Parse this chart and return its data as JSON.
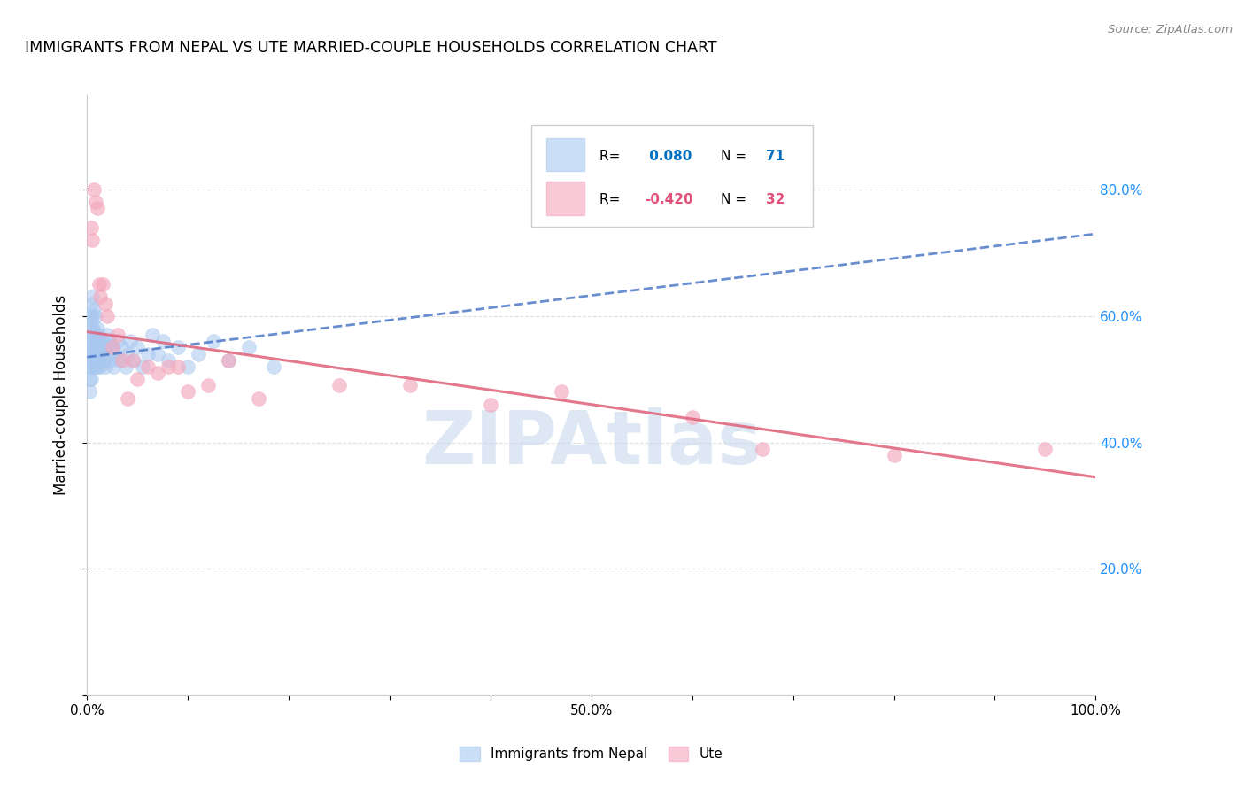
{
  "title": "IMMIGRANTS FROM NEPAL VS UTE MARRIED-COUPLE HOUSEHOLDS CORRELATION CHART",
  "source": "Source: ZipAtlas.com",
  "ylabel": "Married-couple Households",
  "xlim": [
    0.0,
    1.0
  ],
  "ylim": [
    0.0,
    0.95
  ],
  "blue_color": "#A8C8F0",
  "pink_color": "#F4A8BE",
  "blue_line_color": "#4472C4",
  "pink_line_color": "#E06880",
  "blue_r_color": "#0070C0",
  "pink_r_color": "#E0507A",
  "watermark_color": "#C8D8EE",
  "nepal_x": [
    0.002,
    0.002,
    0.002,
    0.002,
    0.002,
    0.003,
    0.003,
    0.003,
    0.003,
    0.004,
    0.004,
    0.004,
    0.004,
    0.004,
    0.005,
    0.005,
    0.005,
    0.005,
    0.006,
    0.006,
    0.006,
    0.007,
    0.007,
    0.007,
    0.008,
    0.008,
    0.008,
    0.009,
    0.009,
    0.01,
    0.01,
    0.01,
    0.011,
    0.011,
    0.012,
    0.012,
    0.013,
    0.013,
    0.014,
    0.015,
    0.016,
    0.017,
    0.018,
    0.02,
    0.021,
    0.022,
    0.023,
    0.025,
    0.026,
    0.028,
    0.03,
    0.032,
    0.035,
    0.038,
    0.04,
    0.043,
    0.046,
    0.05,
    0.055,
    0.06,
    0.065,
    0.07,
    0.075,
    0.08,
    0.09,
    0.1,
    0.11,
    0.125,
    0.14,
    0.16,
    0.185
  ],
  "nepal_y": [
    0.56,
    0.54,
    0.52,
    0.5,
    0.48,
    0.6,
    0.58,
    0.55,
    0.52,
    0.62,
    0.59,
    0.56,
    0.53,
    0.5,
    0.63,
    0.6,
    0.57,
    0.54,
    0.58,
    0.55,
    0.52,
    0.61,
    0.57,
    0.54,
    0.6,
    0.57,
    0.53,
    0.55,
    0.52,
    0.58,
    0.55,
    0.52,
    0.57,
    0.54,
    0.56,
    0.53,
    0.55,
    0.52,
    0.54,
    0.56,
    0.53,
    0.55,
    0.52,
    0.57,
    0.54,
    0.56,
    0.53,
    0.55,
    0.52,
    0.54,
    0.56,
    0.53,
    0.55,
    0.52,
    0.54,
    0.56,
    0.53,
    0.55,
    0.52,
    0.54,
    0.57,
    0.54,
    0.56,
    0.53,
    0.55,
    0.52,
    0.54,
    0.56,
    0.53,
    0.55,
    0.52
  ],
  "ute_x": [
    0.004,
    0.005,
    0.007,
    0.008,
    0.01,
    0.012,
    0.013,
    0.015,
    0.018,
    0.02,
    0.025,
    0.03,
    0.035,
    0.04,
    0.045,
    0.05,
    0.06,
    0.07,
    0.08,
    0.09,
    0.1,
    0.12,
    0.14,
    0.17,
    0.25,
    0.32,
    0.4,
    0.47,
    0.6,
    0.67,
    0.8,
    0.95
  ],
  "ute_y": [
    0.74,
    0.72,
    0.8,
    0.78,
    0.77,
    0.65,
    0.63,
    0.65,
    0.62,
    0.6,
    0.55,
    0.57,
    0.53,
    0.47,
    0.53,
    0.5,
    0.52,
    0.51,
    0.52,
    0.52,
    0.48,
    0.49,
    0.53,
    0.47,
    0.49,
    0.49,
    0.46,
    0.48,
    0.44,
    0.39,
    0.38,
    0.39
  ],
  "nepal_trend_x": [
    0.0,
    1.0
  ],
  "nepal_trend_y": [
    0.535,
    0.73
  ],
  "ute_trend_x": [
    0.0,
    1.0
  ],
  "ute_trend_y": [
    0.575,
    0.345
  ]
}
